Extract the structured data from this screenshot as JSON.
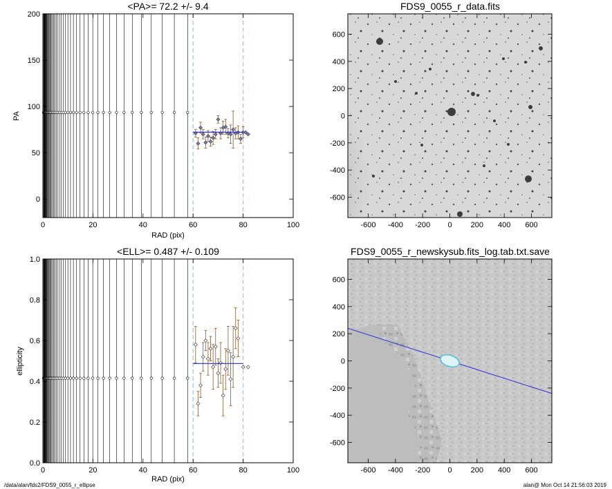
{
  "footer": {
    "left": "/data/alan/fds2/FDS9_0055_r_ellipse",
    "right": "alan@  Mon Oct 14 21:56:03 2019"
  },
  "colors": {
    "fit_line": "#2a2ad8",
    "dashed_markers": "#7fd3e6",
    "errorbar_brown": "#8b5a2b",
    "point_fill": "#7a7abf"
  },
  "chart_data": [
    {
      "type": "scatter",
      "title": "<PA>=  72.2 +/-   9.4",
      "xlabel": "RAD (pix)",
      "ylabel": "PA",
      "xlim": [
        0,
        100
      ],
      "ylim": [
        -20,
        200
      ],
      "xticks": [
        0,
        20,
        40,
        60,
        80,
        100
      ],
      "yticks": [
        0,
        50,
        100,
        150,
        200
      ],
      "radii_lines_max": 60,
      "constant_value": 93.5,
      "mean": 72.2,
      "vlines": [
        60,
        80
      ],
      "points": [
        {
          "x": 61,
          "y": 71,
          "err": 4
        },
        {
          "x": 62,
          "y": 60,
          "err": 6
        },
        {
          "x": 63,
          "y": 77,
          "err": 6
        },
        {
          "x": 64,
          "y": 70,
          "err": 5
        },
        {
          "x": 65,
          "y": 61,
          "err": 6
        },
        {
          "x": 66,
          "y": 68,
          "err": 6
        },
        {
          "x": 67,
          "y": 62,
          "err": 5
        },
        {
          "x": 68,
          "y": 66,
          "err": 7
        },
        {
          "x": 69,
          "y": 70,
          "err": 5
        },
        {
          "x": 70,
          "y": 86,
          "err": 4
        },
        {
          "x": 71,
          "y": 71,
          "err": 6
        },
        {
          "x": 72,
          "y": 77,
          "err": 7
        },
        {
          "x": 73,
          "y": 78,
          "err": 8
        },
        {
          "x": 74,
          "y": 71,
          "err": 5
        },
        {
          "x": 75,
          "y": 70,
          "err": 10
        },
        {
          "x": 76,
          "y": 75,
          "err": 20
        },
        {
          "x": 77,
          "y": 71,
          "err": 6
        },
        {
          "x": 78,
          "y": 72,
          "err": 7
        },
        {
          "x": 79,
          "y": 65,
          "err": 5
        },
        {
          "x": 80,
          "y": 72,
          "err": 6
        },
        {
          "x": 81,
          "y": 72,
          "err": 0
        },
        {
          "x": 82,
          "y": 70,
          "err": 0
        }
      ]
    },
    {
      "type": "scatter",
      "title": "<ELL>= 0.487 +/-  0.109",
      "xlabel": "RAD (pix)",
      "ylabel": "ellipticity",
      "xlim": [
        0,
        100
      ],
      "ylim": [
        0,
        1.0
      ],
      "xticks": [
        0,
        20,
        40,
        60,
        80,
        100
      ],
      "yticks": [
        0.0,
        0.2,
        0.4,
        0.6,
        0.8,
        1.0
      ],
      "ytick_labels": [
        "0.0",
        "0.2",
        "0.4",
        "0.6",
        "0.8",
        "1.0"
      ],
      "radii_lines_max": 60,
      "constant_value": 0.415,
      "mean": 0.487,
      "vlines": [
        60,
        80
      ],
      "points": [
        {
          "x": 61,
          "y": 0.58,
          "err": 0.09
        },
        {
          "x": 62,
          "y": 0.29,
          "err": 0.06
        },
        {
          "x": 63,
          "y": 0.38,
          "err": 0.06
        },
        {
          "x": 64,
          "y": 0.52,
          "err": 0.07
        },
        {
          "x": 65,
          "y": 0.6,
          "err": 0.05
        },
        {
          "x": 66,
          "y": 0.51,
          "err": 0.08
        },
        {
          "x": 67,
          "y": 0.56,
          "err": 0.06
        },
        {
          "x": 68,
          "y": 0.47,
          "err": 0.11
        },
        {
          "x": 69,
          "y": 0.57,
          "err": 0.09
        },
        {
          "x": 70,
          "y": 0.44,
          "err": 0.07
        },
        {
          "x": 71,
          "y": 0.49,
          "err": 0.1
        },
        {
          "x": 72,
          "y": 0.33,
          "err": 0.1
        },
        {
          "x": 73,
          "y": 0.46,
          "err": 0.1
        },
        {
          "x": 74,
          "y": 0.55,
          "err": 0.12
        },
        {
          "x": 75,
          "y": 0.41,
          "err": 0.13
        },
        {
          "x": 76,
          "y": 0.52,
          "err": 0.15
        },
        {
          "x": 77,
          "y": 0.66,
          "err": 0.1
        },
        {
          "x": 78,
          "y": 0.61,
          "err": 0.09
        },
        {
          "x": 80,
          "y": 0.47,
          "err": 0
        },
        {
          "x": 82,
          "y": 0.47,
          "err": 0
        }
      ]
    },
    {
      "type": "heatmap",
      "title": "FDS9_0055_r_data.fits",
      "xlim": [
        -750,
        750
      ],
      "ylim": [
        -750,
        750
      ],
      "xticks": [
        -600,
        -400,
        -200,
        0,
        200,
        400,
        600
      ],
      "yticks": [
        -600,
        -400,
        -200,
        0,
        200,
        400,
        600
      ]
    },
    {
      "type": "heatmap",
      "title": "FDS9_0055_r_newskysub.fits_log.tab.txt.save",
      "xlim": [
        -750,
        750
      ],
      "ylim": [
        -750,
        750
      ],
      "xticks": [
        -600,
        -400,
        -200,
        0,
        200,
        400,
        600
      ],
      "yticks": [
        -600,
        -400,
        -200,
        0,
        200,
        400,
        600
      ],
      "line": {
        "x1": -750,
        "y1": 240,
        "x2": 750,
        "y2": -240
      },
      "ellipse": {
        "cx": 0,
        "cy": 0
      }
    }
  ]
}
